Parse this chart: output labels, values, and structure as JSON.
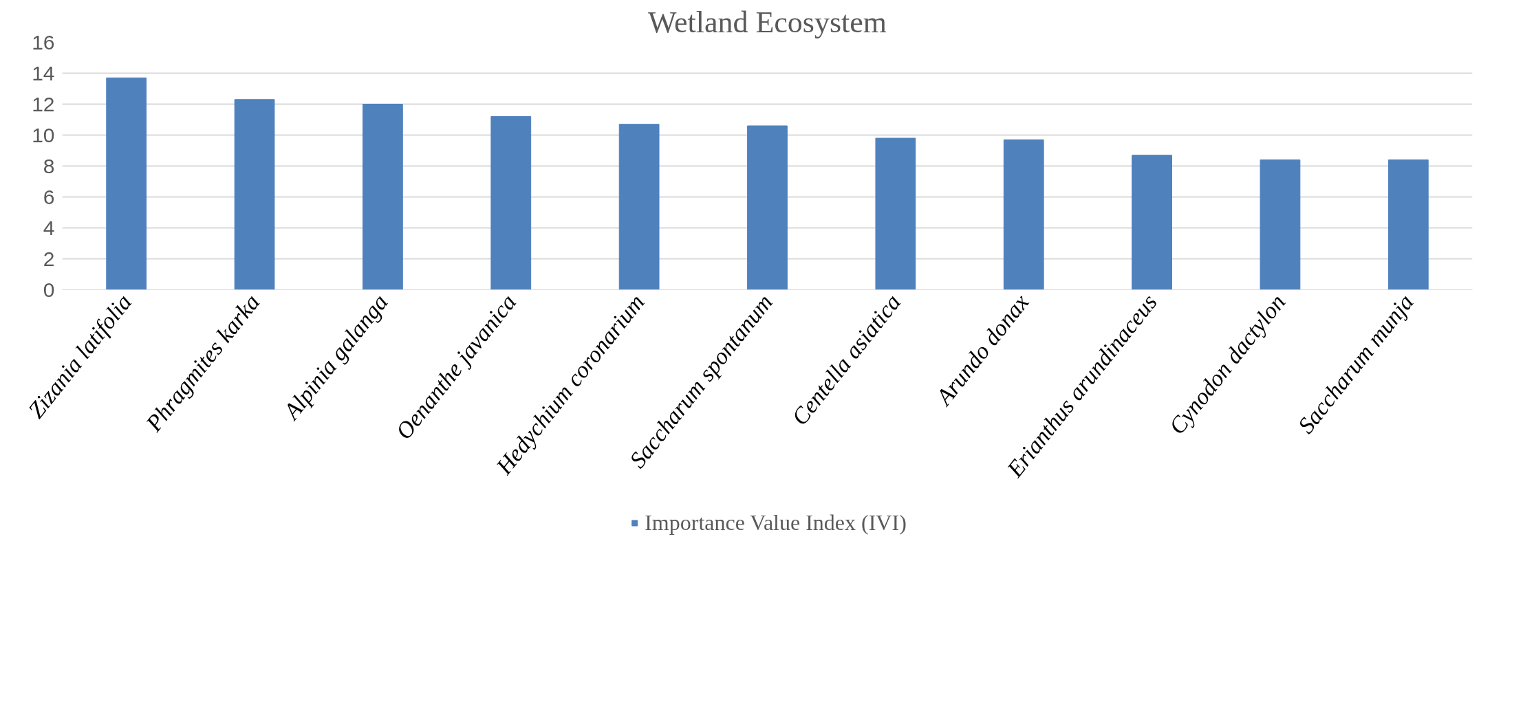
{
  "chart_data": {
    "type": "bar",
    "title": "Wetland Ecosystem",
    "categories": [
      "Zizania latifolia",
      "Phragmites karka",
      "Alpinia galanga",
      "Oenanthe javanica",
      "Hedychium coronarium",
      "Saccharum spontanum",
      "Centella asiatica",
      "Arundo donax",
      "Erianthus arundinaceus",
      "Cynodon dactylon",
      "Saccharum munja"
    ],
    "series": [
      {
        "name": "Importance Value Index (IVI)",
        "color": "#4f81bd",
        "values": [
          13.7,
          12.3,
          12.0,
          11.2,
          10.7,
          10.6,
          9.8,
          9.7,
          8.7,
          8.4,
          8.4
        ]
      }
    ],
    "ylim": [
      0,
      16
    ],
    "yticks": [
      0,
      2,
      4,
      6,
      8,
      10,
      12,
      14,
      16
    ],
    "grid": "y",
    "legend": "bottom"
  }
}
